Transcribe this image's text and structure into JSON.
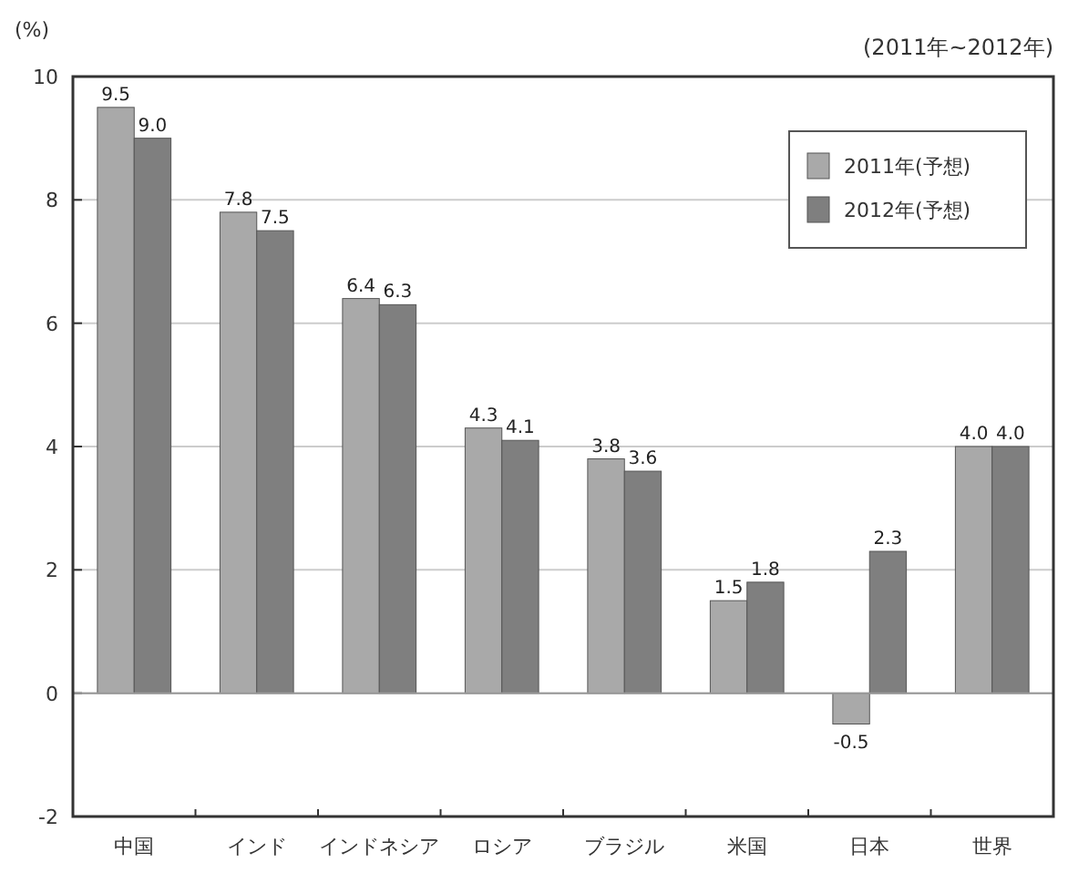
{
  "chart_data": {
    "type": "bar",
    "ylabel": "(%)",
    "annotations": [
      "(2011年~2012年)"
    ],
    "categories": [
      "中国",
      "インド",
      "インドネシア",
      "ロシア",
      "ブラジル",
      "米国",
      "日本",
      "世界"
    ],
    "series": [
      {
        "name": "2011年(予想)",
        "color": "#a9a9a9",
        "values": [
          9.5,
          7.8,
          6.4,
          4.3,
          3.8,
          1.5,
          -0.5,
          4.0
        ],
        "value_labels": [
          "9.5",
          "7.8",
          "6.4",
          "4.3",
          "3.8",
          "1.5",
          "-0.5",
          "4.0"
        ]
      },
      {
        "name": "2012年(予想)",
        "color": "#7f7f7f",
        "values": [
          9.0,
          7.5,
          6.3,
          4.1,
          3.6,
          1.8,
          2.3,
          4.0
        ],
        "value_labels": [
          "9.0",
          "7.5",
          "6.3",
          "4.1",
          "3.6",
          "1.8",
          "2.3",
          "4.0"
        ]
      }
    ],
    "ylim": [
      -2,
      10
    ],
    "yticks": [
      -2,
      0,
      2,
      4,
      6,
      8,
      10
    ],
    "grid": "y",
    "legend": "top right"
  }
}
